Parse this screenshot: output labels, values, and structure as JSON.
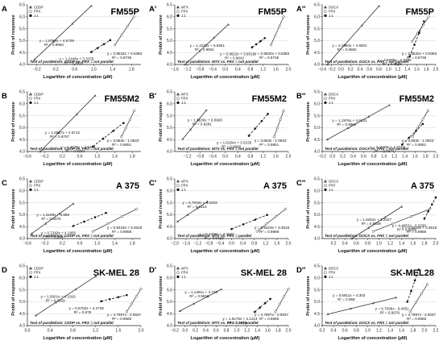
{
  "figure": {
    "ylabel": "Probit of response",
    "xlabel": "Logarithm of concentration (µM)"
  },
  "chart_data": [
    {
      "letter": "A",
      "title": "FM55P",
      "type": "scatter",
      "legend": [
        "CDDP",
        "FRX",
        "1:1"
      ],
      "xlim": [
        -0.4,
        2.0
      ],
      "ylim": [
        4.0,
        6.5
      ],
      "xticks": [
        -0.2,
        0.2,
        0.6,
        1.0,
        1.4,
        1.8
      ],
      "yticks": [
        4.0,
        4.5,
        5.0,
        5.5,
        6.0,
        6.5
      ],
      "lines": [
        {
          "role": "CDDP",
          "slope": 1.8769,
          "intercept": 4.6729,
          "x": [
            -0.25,
            0.95
          ],
          "eq": "y = 1.8769x + 4.6729",
          "r2": "R² = 0.9994"
        },
        {
          "role": "FRX",
          "slope": 2.9532,
          "intercept": 0.5383,
          "x": [
            1.45,
            1.85
          ],
          "eq": "y = 2.9532x + 0.5383",
          "r2": "R² = 0.9735"
        },
        {
          "role": "1:1",
          "slope": 1.2448,
          "intercept": 3.3378,
          "x": [
            0.95,
            1.35
          ],
          "eq": "y = 1.2448x + 3.3378",
          "r2": "R² = 0.9926"
        }
      ],
      "parallelism": "Test of parallelism: CDDP vs. FRX = not parallel"
    },
    {
      "letter": "A'",
      "title": "FM55P",
      "type": "scatter",
      "legend": [
        "MTX",
        "FRX",
        "1:1"
      ],
      "xlim": [
        -1.6,
        2.0
      ],
      "ylim": [
        4.0,
        6.5
      ],
      "xticks": [
        -1.6,
        -1.2,
        -0.8,
        -0.4,
        0.0,
        0.4,
        0.8,
        1.2,
        1.6,
        2.0
      ],
      "yticks": [
        4.0,
        4.5,
        5.0,
        5.5,
        6.0,
        6.5
      ],
      "lines": [
        {
          "role": "MTX",
          "slope": 1.2226,
          "intercept": 5.5551,
          "x": [
            -1.3,
            0.1
          ],
          "eq": "y = 1.2226x + 5.5551",
          "r2": "R² = 0.9901"
        },
        {
          "role": "FRX",
          "slope": 2.9532,
          "intercept": 0.5383,
          "x": [
            1.45,
            1.85
          ],
          "eq": "y = 2.9532x + 0.5383",
          "r2": "R² = 0.9735"
        },
        {
          "role": "1:1",
          "slope": 0.9622,
          "intercept": 3.9019,
          "x": [
            0.85,
            1.25
          ],
          "eq": "y = 0.9622x + 3.9019",
          "r2": "R² = 0.9642"
        }
      ],
      "parallelism": "Test of parallelism: MTX vs. FRX = not parallel"
    },
    {
      "letter": "A''",
      "title": "FM55P",
      "type": "scatter",
      "legend": [
        "DOCX",
        "FRX",
        "1:1"
      ],
      "xlim": [
        -0.4,
        2.0
      ],
      "ylim": [
        4.0,
        6.5
      ],
      "xticks": [
        -0.4,
        -0.2,
        0.0,
        0.2,
        0.4,
        0.6,
        0.8,
        1.0,
        1.2,
        1.4,
        1.6,
        1.8,
        2.0
      ],
      "yticks": [
        4.0,
        4.5,
        5.0,
        5.5,
        6.0,
        6.5
      ],
      "lines": [
        {
          "role": "DOCX",
          "slope": 2.2483,
          "intercept": 4.6501,
          "x": [
            -0.3,
            0.8
          ],
          "eq": "y = 2.2483x + 4.6501",
          "r2": "R² = 0.9582"
        },
        {
          "role": "FRX",
          "slope": 2.9532,
          "intercept": 0.5383,
          "x": [
            1.5,
            1.85
          ],
          "eq": "y = 2.9532x + 0.5383",
          "r2": "R² = 0.9735"
        },
        {
          "role": "1:1",
          "slope": 4.8785,
          "intercept": -2.7306,
          "x": [
            1.45,
            1.75
          ],
          "eq": "y = 4.8785x - 2.7306",
          "r2": "R² = 0.9598"
        }
      ],
      "parallelism": "Test of parallelism: DOCX vs. FRX = not parallel"
    },
    {
      "letter": "B",
      "title": "FM55M2",
      "type": "scatter",
      "legend": [
        "CDDP",
        "FRX",
        "1:1"
      ],
      "xlim": [
        -0.6,
        2.0
      ],
      "ylim": [
        4.0,
        6.5
      ],
      "xticks": [
        -0.6,
        -0.2,
        0.2,
        0.6,
        1.0,
        1.4,
        1.8
      ],
      "yticks": [
        4.0,
        4.5,
        5.0,
        5.5,
        6.0,
        6.5
      ],
      "lines": [
        {
          "role": "CDDP",
          "slope": 1.8657,
          "intercept": 4.5712,
          "x": [
            -0.45,
            0.95
          ],
          "eq": "y = 1.8657x + 4.5712",
          "r2": "R² = 0.9757"
        },
        {
          "role": "FRX",
          "slope": 3.663,
          "intercept": -1.0623,
          "x": [
            1.55,
            1.85
          ],
          "eq": "y = 3.663x - 1.0623",
          "r2": "R² = 0.9851"
        },
        {
          "role": "1:1",
          "slope": 1.4029,
          "intercept": 2.9474,
          "x": [
            0.9,
            1.6
          ],
          "eq": "y = 1.4029x + 2.9474",
          "r2": "R² = 0.9464"
        }
      ],
      "parallelism": "Test of parallelism: CDDP vs. FRX = not parallel"
    },
    {
      "letter": "B'",
      "title": "FM55M2",
      "type": "scatter",
      "legend": [
        "MTX",
        "FRX",
        "1:1"
      ],
      "xlim": [
        -1.6,
        2.0
      ],
      "ylim": [
        4.0,
        6.5
      ],
      "xticks": [
        -1.2,
        -0.8,
        -0.4,
        0.0,
        0.4,
        0.8,
        1.2,
        1.6,
        2.0
      ],
      "yticks": [
        4.0,
        4.5,
        5.0,
        5.5,
        6.0,
        6.5
      ],
      "lines": [
        {
          "role": "MTX",
          "slope": 1.6136,
          "intercept": 6.6993,
          "x": [
            -1.35,
            -0.6
          ],
          "eq": "y = 1.6136x + 6.6993",
          "r2": "R² = 0.9281"
        },
        {
          "role": "FRX",
          "slope": 3.663,
          "intercept": -1.0623,
          "x": [
            1.55,
            1.85
          ],
          "eq": "y = 3.663x - 1.0623",
          "r2": "R² = 0.9851"
        },
        {
          "role": "1:1",
          "slope": 1.5264,
          "intercept": 3.5155,
          "x": [
            0.75,
            1.35
          ],
          "eq": "y = 1.5264x + 3.5155",
          "r2": "R² = 0.9696"
        }
      ],
      "parallelism": "Test of parallelism: MTX vs. FRX = not parallel"
    },
    {
      "letter": "B''",
      "title": "FM55M2",
      "type": "scatter",
      "legend": [
        "DOCX",
        "FRX",
        "1:1"
      ],
      "xlim": [
        -0.2,
        2.0
      ],
      "ylim": [
        4.0,
        6.5
      ],
      "xticks": [
        -0.2,
        0.0,
        0.2,
        0.4,
        0.6,
        0.8,
        1.0,
        1.2,
        1.4,
        1.6,
        1.8,
        2.0
      ],
      "yticks": [
        4.0,
        4.5,
        5.0,
        5.5,
        6.0,
        6.5
      ],
      "lines": [
        {
          "role": "DOCX",
          "slope": 1.1976,
          "intercept": 4.6231,
          "x": [
            -0.1,
            1.1
          ],
          "eq": "y = 1.1976x + 4.6231",
          "r2": "R² = 0.9962"
        },
        {
          "role": "FRX",
          "slope": 3.663,
          "intercept": -1.0623,
          "x": [
            1.55,
            1.85
          ],
          "eq": "y = 3.663x - 1.0623",
          "r2": "R² = 0.9851"
        },
        {
          "role": "1:1",
          "slope": 2.1626,
          "intercept": 1.3723,
          "x": [
            1.35,
            1.75
          ],
          "eq": "y = 2.1626x + 1.3723",
          "r2": "R² = 0.9274"
        }
      ],
      "parallelism": "Test of parallelism: DOCX vs. FRX = not parallel"
    },
    {
      "letter": "C",
      "title": "A 375",
      "type": "scatter",
      "legend": [
        "CDDP",
        "FRX",
        "1:1"
      ],
      "xlim": [
        -0.6,
        2.0
      ],
      "ylim": [
        4.0,
        6.5
      ],
      "xticks": [
        -0.6,
        -0.2,
        0.2,
        0.6,
        1.0,
        1.4,
        1.8
      ],
      "yticks": [
        4.0,
        4.5,
        5.0,
        5.5,
        6.0,
        6.5
      ],
      "lines": [
        {
          "role": "CDDP",
          "slope": 1.3169,
          "intercept": 4.866,
          "x": [
            -0.5,
            0.45
          ],
          "eq": "y = 1.3169x + 4.866",
          "r2": "R² = 0.9376"
        },
        {
          "role": "FRX",
          "slope": 0.9419,
          "intercept": 3.4518,
          "x": [
            0.9,
            1.9
          ],
          "eq": "y = 0.9419x + 3.4518",
          "r2": "R² = 0.9868"
        },
        {
          "role": "1:1",
          "slope": 0.7343,
          "intercept": 4.1956,
          "x": [
            0.45,
            1.2
          ],
          "eq": "y = 0.7343x + 4.1956",
          "r2": "R² = 0.9947"
        }
      ],
      "parallelism": "Test of parallelism: CDDP vs. FRX = not parallel"
    },
    {
      "letter": "C'",
      "title": "A 375",
      "type": "scatter",
      "legend": [
        "MTX",
        "FRX",
        "1:1"
      ],
      "xlim": [
        -2.0,
        2.0
      ],
      "ylim": [
        4.0,
        6.5
      ],
      "xticks": [
        -2.0,
        -1.6,
        -1.2,
        -0.8,
        -0.4,
        0.0,
        0.4,
        0.8,
        1.2,
        1.6,
        2.0
      ],
      "yticks": [
        4.0,
        4.5,
        5.0,
        5.5,
        6.0,
        6.5
      ],
      "lines": [
        {
          "role": "MTX",
          "slope": 0.7919,
          "intercept": 6.2203,
          "x": [
            -1.9,
            -0.85
          ],
          "eq": "y = 0.7919x + 6.2203",
          "r2": "R² = 0.9314"
        },
        {
          "role": "FRX",
          "slope": 0.9419,
          "intercept": 3.4518,
          "x": [
            0.9,
            1.9
          ],
          "eq": "y = 0.9419x + 3.4518",
          "r2": "R² = 0.9868"
        },
        {
          "role": "1:1",
          "slope": 0.4709,
          "intercept": 4.4006,
          "x": [
            0.0,
            1.25
          ],
          "eq": "y = 0.4709x + 4.4006",
          "r2": "R² = 0.9423"
        }
      ],
      "parallelism": "Test of parallelism: MTX vs. FRX = parallel"
    },
    {
      "letter": "C''",
      "title": "A 375",
      "type": "scatter",
      "legend": [
        "DOCX",
        "FRX",
        "1:1"
      ],
      "xlim": [
        0.0,
        2.0
      ],
      "ylim": [
        4.0,
        6.5
      ],
      "xticks": [
        0.2,
        0.4,
        0.6,
        0.8,
        1.0,
        1.2,
        1.4,
        1.6,
        1.8,
        2.0
      ],
      "yticks": [
        4.0,
        4.5,
        5.0,
        5.5,
        6.0,
        6.5
      ],
      "lines": [
        {
          "role": "DOCX",
          "slope": 1.5262,
          "intercept": 3.2027,
          "x": [
            0.35,
            1.4
          ],
          "eq": "y = 1.5262x + 3.2027",
          "r2": "R² = 0.9339"
        },
        {
          "role": "FRX",
          "slope": 0.9419,
          "intercept": 3.4518,
          "x": [
            0.9,
            1.9
          ],
          "eq": "y = 0.9419x + 3.4518",
          "r2": "R² = 0.9868"
        },
        {
          "role": "1:1",
          "slope": 4.4657,
          "intercept": -3.2036,
          "x": [
            1.8,
            2.0
          ],
          "eq": "y = 4.4657x - 3.2036",
          "r2": "R² = 0.9568"
        }
      ],
      "parallelism": "Test of parallelism: DOCX vs. FRX = not parallel"
    },
    {
      "letter": "D",
      "title": "SK-MEL 28",
      "type": "scatter",
      "legend": [
        "CDDP",
        "FRX",
        "1:1"
      ],
      "xlim": [
        0.0,
        2.0
      ],
      "ylim": [
        4.0,
        6.5
      ],
      "xticks": [
        0.0,
        0.4,
        0.8,
        1.2,
        1.6,
        2.0
      ],
      "yticks": [
        4.0,
        4.5,
        5.0,
        5.5,
        6.0,
        6.5
      ],
      "lines": [
        {
          "role": "CDDP",
          "slope": 1.5601,
          "intercept": 4.1916,
          "x": [
            0.15,
            1.2
          ],
          "eq": "y = 1.5601x + 4.1916",
          "r2": "R² = 0.9929"
        },
        {
          "role": "FRX",
          "slope": 3.7997,
          "intercept": -2.0637,
          "x": [
            1.75,
            2.0
          ],
          "eq": "y = 3.7997x - 2.0637",
          "r2": "R² = 0.9686"
        },
        {
          "role": "1:1",
          "slope": 0.5752,
          "intercept": 4.2728,
          "x": [
            1.3,
            1.75
          ],
          "eq": "y = 0.5752x + 4.2728",
          "r2": "R² = 0.978"
        }
      ],
      "parallelism": "Test of parallelism: CDDP vs. FRX = not parallel"
    },
    {
      "letter": "D'",
      "title": "SK-MEL 28",
      "type": "scatter",
      "legend": [
        "MTX",
        "FRX",
        "1:1"
      ],
      "xlim": [
        -0.2,
        2.0
      ],
      "ylim": [
        4.0,
        6.5
      ],
      "xticks": [
        -0.2,
        0.0,
        0.2,
        0.4,
        0.6,
        0.8,
        1.0,
        1.2,
        1.4,
        1.6,
        1.8,
        2.0
      ],
      "yticks": [
        4.0,
        4.5,
        5.0,
        5.5,
        6.0,
        6.5
      ],
      "lines": [
        {
          "role": "MTX",
          "slope": 1.1361,
          "intercept": 4.726,
          "x": [
            -0.1,
            0.7
          ],
          "eq": "y = 1.1361x + 4.726",
          "r2": "R² = 0.9918"
        },
        {
          "role": "FRX",
          "slope": 3.7997,
          "intercept": -2.0637,
          "x": [
            1.75,
            2.0
          ],
          "eq": "y = 3.7997x - 2.0637",
          "r2": "R² = 0.9686"
        },
        {
          "role": "1:1",
          "slope": 1.8178,
          "intercept": 2.1214,
          "x": [
            1.35,
            1.65
          ],
          "eq": "y = 1.8178x + 2.1214",
          "r2": "R² = 0.9639"
        }
      ],
      "parallelism": "Test of parallelism: MTX vs. FRX = not parallel"
    },
    {
      "letter": "D''",
      "title": "SK-MEL28",
      "type": "scatter",
      "legend": [
        "DOCX",
        "FRX",
        "1:1"
      ],
      "xlim": [
        0.2,
        2.2
      ],
      "ylim": [
        4.0,
        6.5
      ],
      "xticks": [
        0.2,
        0.4,
        0.6,
        0.8,
        1.0,
        1.2,
        1.4,
        1.6,
        1.8,
        2.0,
        2.2
      ],
      "yticks": [
        4.0,
        4.5,
        5.0,
        5.5,
        6.0,
        6.5
      ],
      "lines": [
        {
          "role": "DOCX",
          "slope": 0.5811,
          "intercept": 4.303,
          "x": [
            0.3,
            1.5
          ],
          "eq": "y = 0.5811x + 4.303",
          "r2": "R² = 0.958"
        },
        {
          "role": "FRX",
          "slope": 3.7997,
          "intercept": -2.0637,
          "x": [
            1.75,
            2.05
          ],
          "eq": "y = 3.7997x - 2.0637",
          "r2": "R² = 0.9686"
        },
        {
          "role": "1:1",
          "slope": 6.7096,
          "intercept": -6.4051,
          "x": [
            1.7,
            1.9
          ],
          "eq": "y = 6.7096x - 6.4051",
          "r2": "R² = 0.9079"
        }
      ],
      "parallelism": "Test of parallelism: DOCX vs. FRX = not parallel"
    }
  ]
}
